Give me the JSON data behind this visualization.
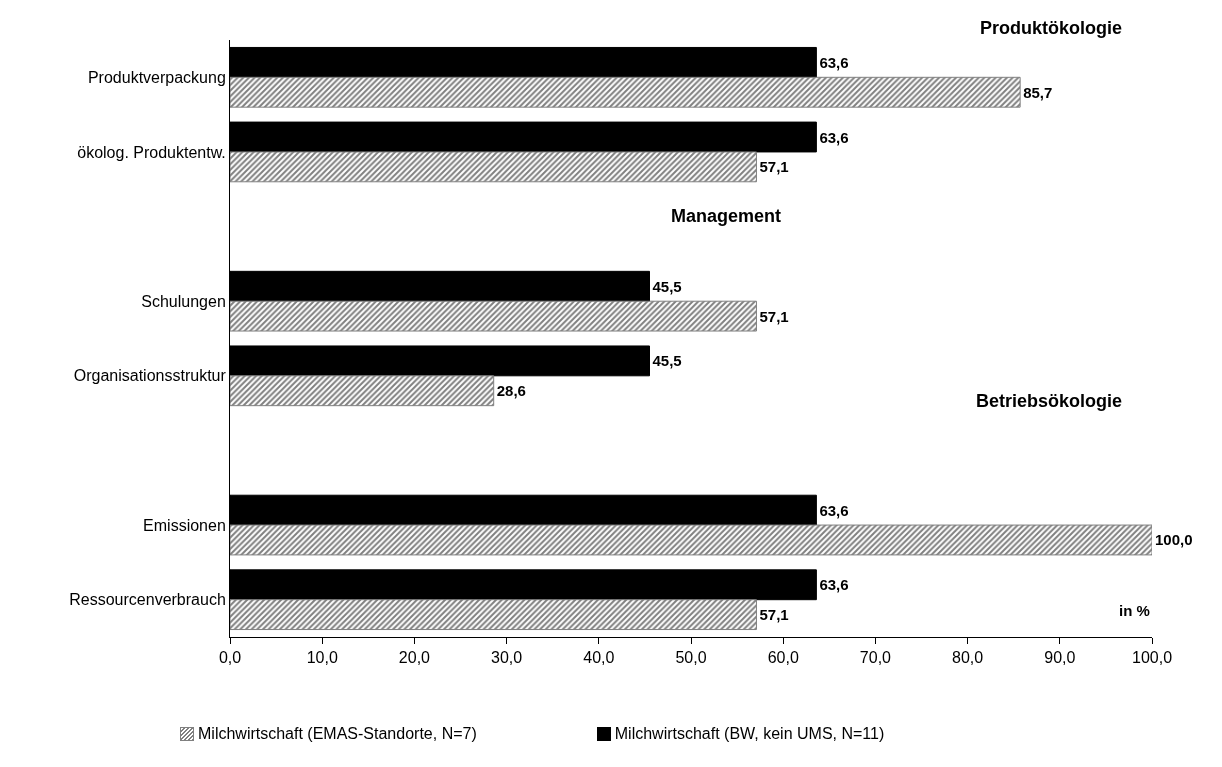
{
  "chart_data": {
    "type": "bar",
    "orientation": "horizontal",
    "categories": [
      "Produktverpackung",
      "ökolog. Produktentw.",
      null,
      "Schulungen",
      "Organisationsstruktur",
      null,
      "Emissionen",
      "Ressourcenverbrauch"
    ],
    "series": [
      {
        "name": "Milchwirtschaft (EMAS-Standorte, N=7)",
        "color": "#808080",
        "values": [
          85.7,
          57.1,
          null,
          57.1,
          28.6,
          null,
          100.0,
          57.1
        ],
        "value_labels": [
          "85,7",
          "57,1",
          null,
          "57,1",
          "28,6",
          null,
          "100,0",
          "57,1"
        ]
      },
      {
        "name": "Milchwirtschaft (BW, kein UMS, N=11)",
        "color": "#000000",
        "values": [
          63.6,
          63.6,
          null,
          45.5,
          45.5,
          null,
          63.6,
          63.6
        ],
        "value_labels": [
          "63,6",
          "63,6",
          null,
          "45,5",
          "45,5",
          null,
          "63,6",
          "63,6"
        ]
      }
    ],
    "xlim": [
      0,
      100
    ],
    "xticks": [
      {
        "value": 0,
        "label": "0,0"
      },
      {
        "value": 10,
        "label": "10,0"
      },
      {
        "value": 20,
        "label": "20,0"
      },
      {
        "value": 30,
        "label": "30,0"
      },
      {
        "value": 40,
        "label": "40,0"
      },
      {
        "value": 50,
        "label": "50,0"
      },
      {
        "value": 60,
        "label": "60,0"
      },
      {
        "value": 70,
        "label": "70,0"
      },
      {
        "value": 80,
        "label": "80,0"
      },
      {
        "value": 90,
        "label": "90,0"
      },
      {
        "value": 100,
        "label": "100,0"
      }
    ],
    "annotations": [
      "Produktökologie",
      "Management",
      "Betriebsökologie",
      "in %"
    ],
    "grid": false,
    "legend": "bottom"
  }
}
